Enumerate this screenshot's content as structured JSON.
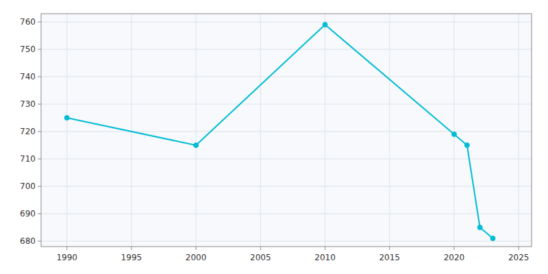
{
  "chart_data": {
    "type": "line",
    "x": [
      1990,
      2000,
      2010,
      2020,
      2021,
      2022,
      2023
    ],
    "values": [
      725,
      715,
      759,
      719,
      715,
      685,
      681
    ],
    "color": "#00BCD4",
    "marker": "circle",
    "xlim": [
      1988,
      2026
    ],
    "ylim": [
      678,
      763
    ],
    "xticks": [
      1990,
      1995,
      2000,
      2005,
      2010,
      2015,
      2020,
      2025
    ],
    "yticks": [
      680,
      690,
      700,
      710,
      720,
      730,
      740,
      750,
      760
    ],
    "grid": true
  }
}
